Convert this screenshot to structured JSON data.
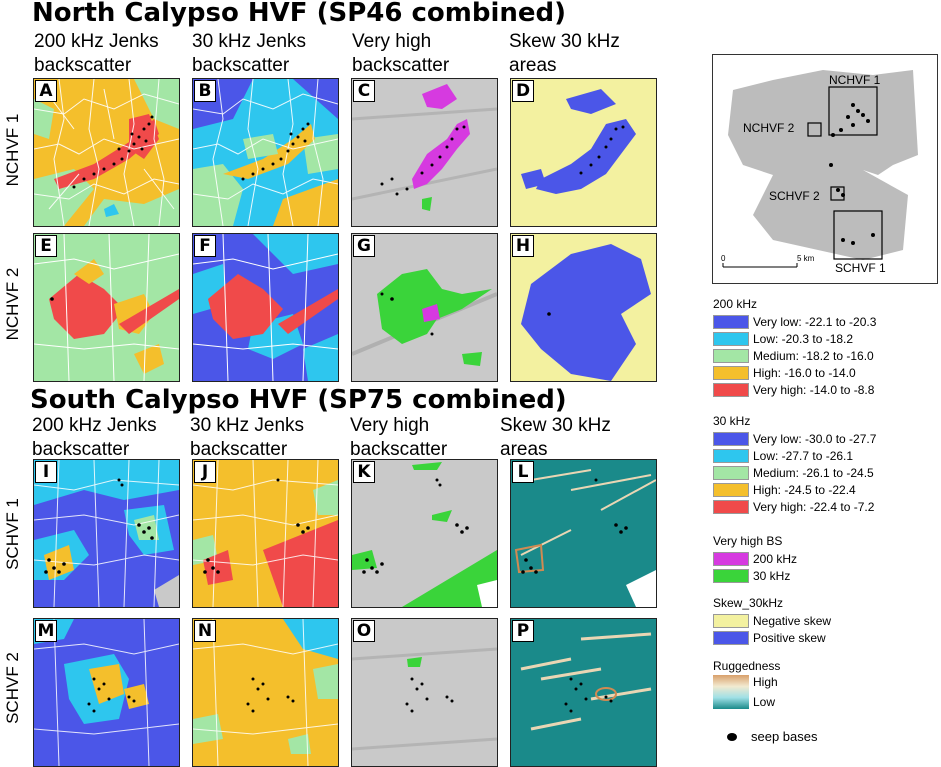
{
  "titles": {
    "north": "North Calypso HVF (SP46 combined)",
    "south": "South Calypso HVF (SP75 combined)"
  },
  "columns_north": [
    [
      "200 kHz Jenks",
      "backscatter"
    ],
    [
      "30 kHz Jenks",
      "backscatter"
    ],
    [
      "Very high",
      "backscatter"
    ],
    [
      "Skew 30 kHz",
      "areas"
    ]
  ],
  "columns_south": [
    [
      "200 kHz Jenks",
      "backscatter"
    ],
    [
      "30 kHz Jenks",
      "backscatter"
    ],
    [
      "Very high",
      "backscatter"
    ],
    [
      "Skew 30 kHz",
      "areas"
    ]
  ],
  "rows": [
    "NCHVF 1",
    "NCHVF 2",
    "SCHVF 1",
    "SCHVF 2"
  ],
  "panel_letters": [
    "A",
    "B",
    "C",
    "D",
    "E",
    "F",
    "G",
    "H",
    "I",
    "J",
    "K",
    "L",
    "M",
    "N",
    "O",
    "P"
  ],
  "inset": {
    "labels": [
      "NCHVF 1",
      "NCHVF 2",
      "SCHVF 2",
      "SCHVF 1"
    ],
    "scale_start": "0",
    "scale_end": "5 km"
  },
  "legend": {
    "khz200": {
      "title": "200 kHz",
      "items": [
        {
          "label": "Very low: -22.1 to -20.3",
          "color": "#4b56e8"
        },
        {
          "label": "Low: -20.3 to -18.2",
          "color": "#2ec6ee"
        },
        {
          "label": "Medium: -18.2 to -16.0",
          "color": "#a3e6a5"
        },
        {
          "label": "High: -16.0 to -14.0",
          "color": "#f4bf2c"
        },
        {
          "label": "Very high: -14.0 to -8.8",
          "color": "#f04a4a"
        }
      ]
    },
    "khz30": {
      "title": "30 kHz",
      "items": [
        {
          "label": "Very low: -30.0 to -27.7",
          "color": "#4b56e8"
        },
        {
          "label": "Low: -27.7 to -26.1",
          "color": "#2ec6ee"
        },
        {
          "label": "Medium: -26.1 to -24.5",
          "color": "#a3e6a5"
        },
        {
          "label": "High: -24.5 to -22.4",
          "color": "#f4bf2c"
        },
        {
          "label": "Very high: -22.4 to -7.2",
          "color": "#f04a4a"
        }
      ]
    },
    "very_high_bs": {
      "title": "Very high BS",
      "items": [
        {
          "label": "200 kHz",
          "color": "#d63ae0"
        },
        {
          "label": "30 kHz",
          "color": "#3ad43a"
        }
      ]
    },
    "skew": {
      "title": "Skew_30kHz",
      "items": [
        {
          "label": "Negative skew",
          "color": "#f3f1a0"
        },
        {
          "label": "Positive skew",
          "color": "#4b56e8"
        }
      ]
    },
    "ruggedness": {
      "title": "Ruggedness",
      "high": "High",
      "low": "Low"
    },
    "seep": "seep bases"
  }
}
